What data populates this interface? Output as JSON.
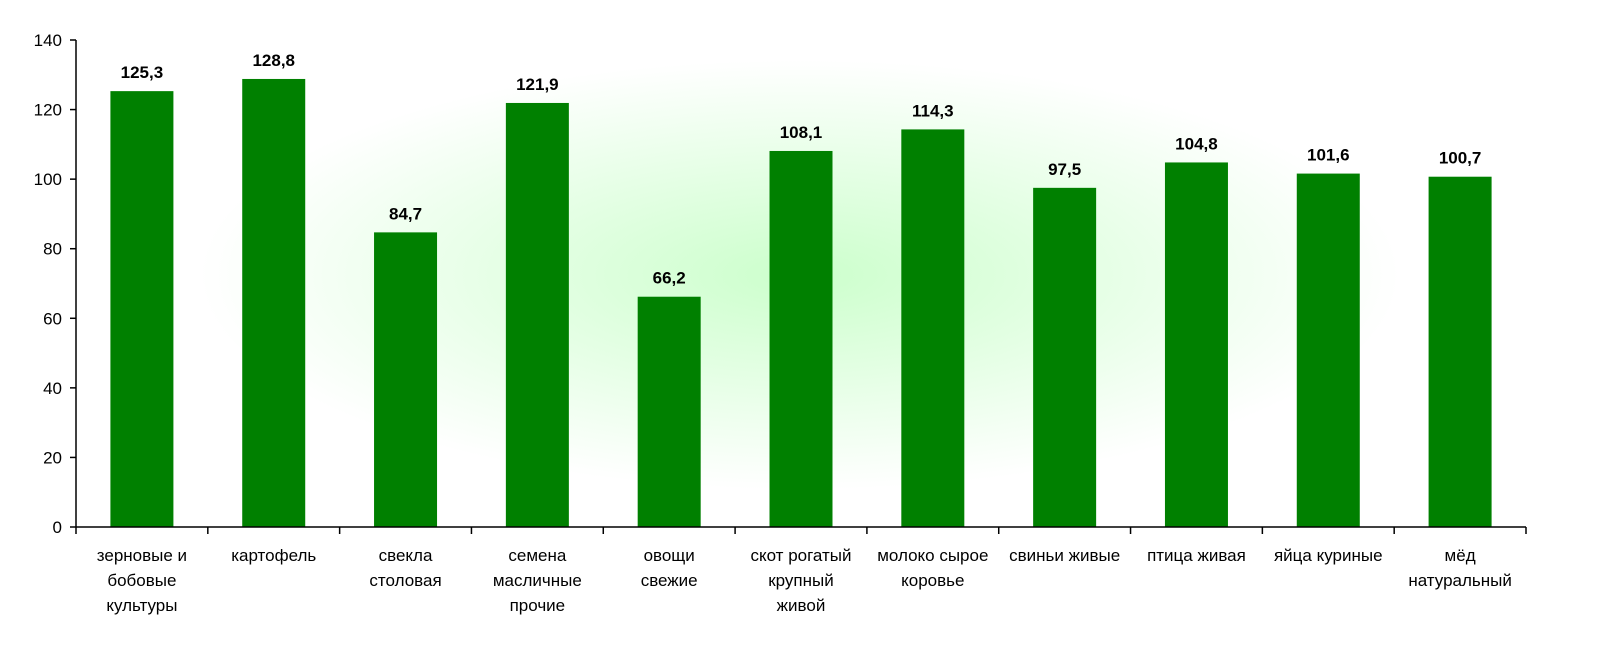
{
  "chart_data": {
    "type": "bar",
    "categories": [
      [
        "зерновые и",
        "бобовые",
        "культуры"
      ],
      [
        "картофель"
      ],
      [
        "свекла",
        "столовая"
      ],
      [
        "семена",
        "масличные",
        "прочие"
      ],
      [
        "овощи",
        "свежие"
      ],
      [
        "скот рогатый",
        "крупный",
        "живой"
      ],
      [
        "молоко сырое",
        "коровье"
      ],
      [
        "свиньи живые"
      ],
      [
        "птица живая"
      ],
      [
        "яйца куриные"
      ],
      [
        "мёд",
        "натуральный"
      ]
    ],
    "values": [
      125.3,
      128.8,
      84.7,
      121.9,
      66.2,
      108.1,
      114.3,
      97.5,
      104.8,
      101.6,
      100.7
    ],
    "value_labels": [
      "125,3",
      "128,8",
      "84,7",
      "121,9",
      "66,2",
      "108,1",
      "114,3",
      "97,5",
      "104,8",
      "101,6",
      "100,7"
    ],
    "yticks": [
      "0",
      "20",
      "40",
      "60",
      "80",
      "100",
      "120",
      "140"
    ],
    "ylim": [
      0,
      140
    ],
    "grid": false,
    "bar_color": "#008000",
    "background_glow": "#ccffcc"
  }
}
